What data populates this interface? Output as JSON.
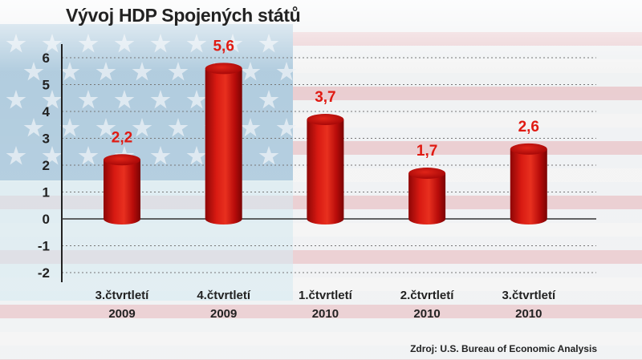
{
  "chart_data": {
    "type": "bar",
    "title": "Vývoj HDP Spojených států",
    "categories": [
      [
        "3.čtvrtletí",
        "2009"
      ],
      [
        "4.čtvrtletí",
        "2009"
      ],
      [
        "1.čtvrtletí",
        "2010"
      ],
      [
        "2.čtvrtletí",
        "2010"
      ],
      [
        "3.čtvrtletí",
        "2010"
      ]
    ],
    "values": [
      2.2,
      5.6,
      3.7,
      1.7,
      2.6
    ],
    "data_labels": [
      "2,2",
      "5,6",
      "3,7",
      "1,7",
      "2,6"
    ],
    "ylim": [
      -2,
      6
    ],
    "yticks": [
      "-2",
      "-1",
      "0",
      "1",
      "2",
      "3",
      "4",
      "5",
      "6"
    ],
    "grid": true,
    "bar_style": "3d-cylinder",
    "colors": {
      "bar": "#cc1111",
      "label": "#e01a12",
      "text": "#222222"
    },
    "background": "us-flag",
    "source": "Zdroj: U.S. Bureau of Economic Analysis"
  }
}
